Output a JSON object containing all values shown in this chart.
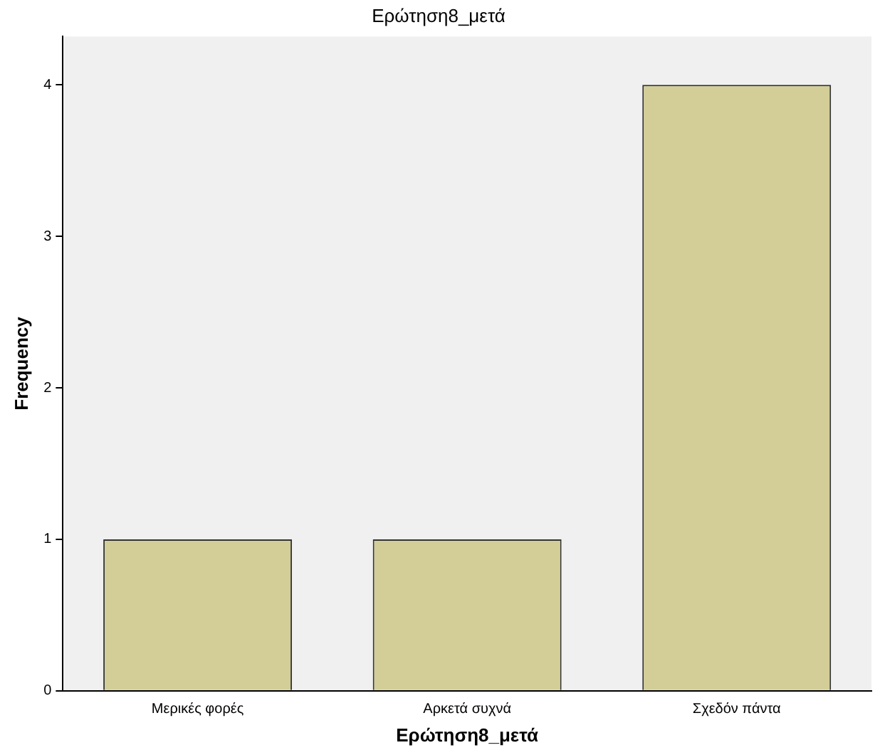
{
  "chart_data": {
    "type": "bar",
    "title": "Ερώτηση8_μετά",
    "xlabel": "Ερώτηση8_μετά",
    "ylabel": "Frequency",
    "categories": [
      "Μερικές φορές",
      "Αρκετά συχνά",
      "Σχεδόν πάντα"
    ],
    "values": [
      1,
      1,
      4
    ],
    "color": "#d3ce97",
    "ylim": [
      0,
      4.32
    ],
    "yticks": [
      0,
      1,
      2,
      3,
      4
    ],
    "grid": false,
    "legend": false
  }
}
